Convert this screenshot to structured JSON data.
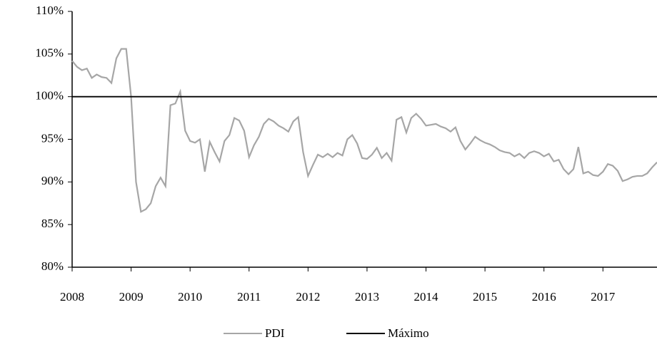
{
  "chart_data": {
    "type": "line",
    "categories": [
      "2008",
      null,
      null,
      null,
      null,
      null,
      null,
      null,
      null,
      null,
      null,
      null,
      "2009",
      null,
      null,
      null,
      null,
      null,
      null,
      null,
      null,
      null,
      null,
      null,
      "2010",
      null,
      null,
      null,
      null,
      null,
      null,
      null,
      null,
      null,
      null,
      null,
      "2011",
      null,
      null,
      null,
      null,
      null,
      null,
      null,
      null,
      null,
      null,
      null,
      "2012",
      null,
      null,
      null,
      null,
      null,
      null,
      null,
      null,
      null,
      null,
      null,
      "2013",
      null,
      null,
      null,
      null,
      null,
      null,
      null,
      null,
      null,
      null,
      null,
      "2014",
      null,
      null,
      null,
      null,
      null,
      null,
      null,
      null,
      null,
      null,
      null,
      "2015",
      null,
      null,
      null,
      null,
      null,
      null,
      null,
      null,
      null,
      null,
      null,
      "2016",
      null,
      null,
      null,
      null,
      null,
      null,
      null,
      null,
      null,
      null,
      null,
      "2017",
      null,
      null,
      null,
      null,
      null,
      null,
      null,
      null,
      null,
      null,
      null
    ],
    "series": [
      {
        "name": "PDI",
        "color": "#a6a6a6",
        "values": [
          104.2,
          103.5,
          103.1,
          103.3,
          102.2,
          102.6,
          102.3,
          102.2,
          101.6,
          104.5,
          105.6,
          105.6,
          100,
          90,
          86.5,
          86.8,
          87.5,
          89.5,
          90.5,
          89.5,
          99,
          99.2,
          100.6,
          96,
          94.8,
          94.6,
          95,
          91.2,
          94.7,
          93.5,
          92.4,
          94.8,
          95.5,
          97.5,
          97.2,
          96,
          92.9,
          94.3,
          95.3,
          96.8,
          97.4,
          97.1,
          96.6,
          96.3,
          95.9,
          97.1,
          97.6,
          93.5,
          90.7,
          92,
          93.2,
          92.9,
          93.3,
          92.9,
          93.4,
          93.1,
          95,
          95.5,
          94.5,
          92.8,
          92.7,
          93.2,
          94,
          92.8,
          93.4,
          92.5,
          97.3,
          97.6,
          95.8,
          97.5,
          98,
          97.4,
          96.6,
          96.7,
          96.8,
          96.5,
          96.3,
          95.9,
          96.4,
          94.8,
          93.8,
          94.5,
          95.3,
          94.9,
          94.6,
          94.4,
          94.1,
          93.7,
          93.5,
          93.4,
          93,
          93.3,
          92.8,
          93.4,
          93.6,
          93.4,
          93,
          93.3,
          92.4,
          92.6,
          91.5,
          90.9,
          91.5,
          94.1,
          91,
          91.2,
          90.8,
          90.7,
          91.2,
          92.1,
          91.9,
          91.3,
          90.1,
          90.3,
          90.6,
          90.7,
          90.7,
          91,
          91.7,
          92.3
        ]
      },
      {
        "name": "Máximo",
        "color": "#000000",
        "values": [
          100,
          100,
          100,
          100,
          100,
          100,
          100,
          100,
          100,
          100,
          100,
          100,
          100,
          100,
          100,
          100,
          100,
          100,
          100,
          100,
          100,
          100,
          100,
          100,
          100,
          100,
          100,
          100,
          100,
          100,
          100,
          100,
          100,
          100,
          100,
          100,
          100,
          100,
          100,
          100,
          100,
          100,
          100,
          100,
          100,
          100,
          100,
          100,
          100,
          100,
          100,
          100,
          100,
          100,
          100,
          100,
          100,
          100,
          100,
          100,
          100,
          100,
          100,
          100,
          100,
          100,
          100,
          100,
          100,
          100,
          100,
          100,
          100,
          100,
          100,
          100,
          100,
          100,
          100,
          100,
          100,
          100,
          100,
          100,
          100,
          100,
          100,
          100,
          100,
          100,
          100,
          100,
          100,
          100,
          100,
          100,
          100,
          100,
          100,
          100,
          100,
          100,
          100,
          100,
          100,
          100,
          100,
          100,
          100,
          100,
          100,
          100,
          100,
          100,
          100,
          100,
          100,
          100,
          100,
          100
        ]
      }
    ],
    "ylim": [
      80,
      110
    ],
    "yticks": [
      {
        "value": 80,
        "label": "80%"
      },
      {
        "value": 85,
        "label": "85%"
      },
      {
        "value": 90,
        "label": "90%"
      },
      {
        "value": 95,
        "label": "95%"
      },
      {
        "value": 100,
        "label": "100%"
      },
      {
        "value": 105,
        "label": "105%"
      },
      {
        "value": 110,
        "label": "110%"
      }
    ],
    "grid": false,
    "legend": "bottom"
  }
}
